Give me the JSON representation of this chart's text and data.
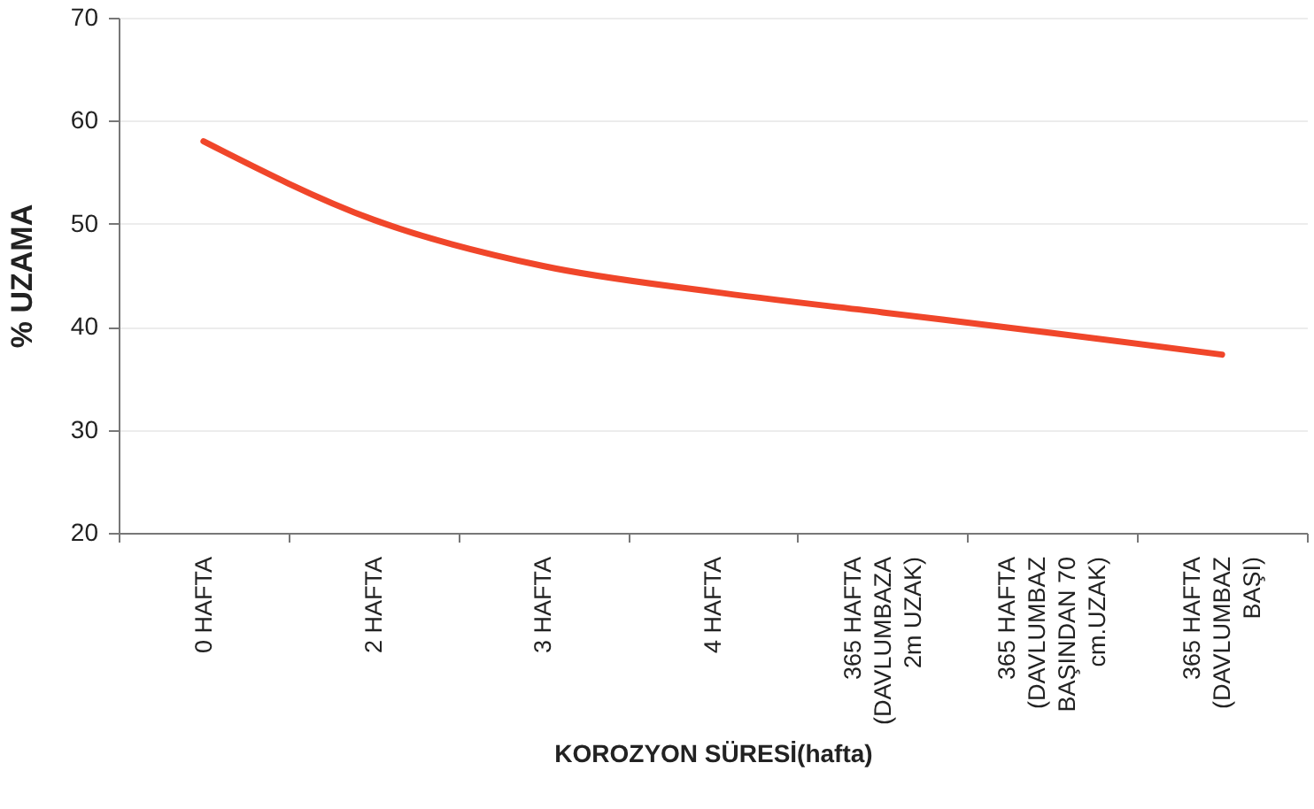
{
  "chart_data": {
    "type": "line",
    "xlabel": "KOROZYON SÜRESİ(hafta)",
    "ylabel": "% UZAMA",
    "categories": [
      "0 HAFTA",
      "2 HAFTA",
      "3 HAFTA",
      "4 HAFTA",
      "365 HAFTA\n(DAVLUMBAZA\n2m UZAK)",
      "365 HAFTA\n(DAVLUMBAZ\nBAŞINDAN 70\ncm.UZAK)",
      "365 HAFTA\n(DAVLUMBAZ\nBAŞI)"
    ],
    "series": [
      {
        "color": "#f0462a",
        "values": [
          58.0,
          50.4,
          45.9,
          43.4,
          41.4,
          39.4,
          37.3
        ]
      }
    ],
    "ylim": [
      20,
      70
    ],
    "yticks": [
      20,
      30,
      40,
      50,
      60,
      70
    ],
    "grid": "y",
    "marker": "none",
    "line_style": "solid"
  }
}
